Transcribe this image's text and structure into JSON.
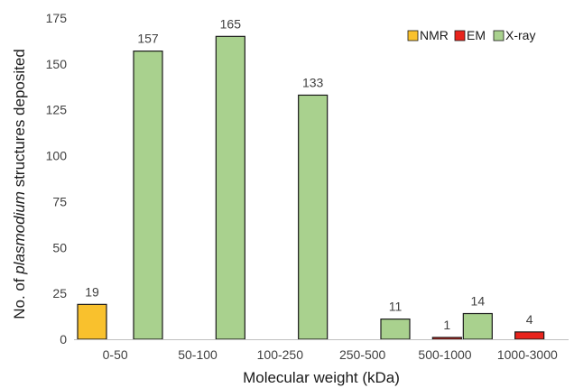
{
  "chart_data": {
    "type": "bar",
    "categories": [
      "0-50",
      "50-100",
      "100-250",
      "250-500",
      "500-1000",
      "1000-3000"
    ],
    "series": [
      {
        "name": "NMR",
        "color": "#f9c12d",
        "values": [
          19,
          0,
          0,
          0,
          0,
          0
        ]
      },
      {
        "name": "EM",
        "color": "#e8231c",
        "values": [
          0,
          0,
          0,
          0,
          1,
          4
        ]
      },
      {
        "name": "X-ray",
        "color": "#a9d18e",
        "values": [
          157,
          165,
          133,
          11,
          14,
          0
        ]
      }
    ],
    "data_labels": [
      {
        "series": "NMR",
        "category": "0-50",
        "text": "19"
      },
      {
        "series": "X-ray",
        "category": "0-50",
        "text": "157"
      },
      {
        "series": "X-ray",
        "category": "50-100",
        "text": "165"
      },
      {
        "series": "X-ray",
        "category": "100-250",
        "text": "133"
      },
      {
        "series": "X-ray",
        "category": "250-500",
        "text": "11"
      },
      {
        "series": "EM",
        "category": "500-1000",
        "text": "1"
      },
      {
        "series": "X-ray",
        "category": "500-1000",
        "text": "14"
      },
      {
        "series": "EM",
        "category": "1000-3000",
        "text": "4"
      }
    ],
    "title": "",
    "xlabel": "Molecular weight (kDa)",
    "ylabel_parts": [
      "No. of ",
      "plasmodium",
      " structures deposited"
    ],
    "ylim": [
      0,
      175
    ],
    "yticks": [
      "0",
      "25",
      "50",
      "75",
      "100",
      "125",
      "150",
      "175"
    ],
    "grid": false,
    "legend_position": "top-right",
    "bar_outline_color": "#1a1a1a"
  }
}
